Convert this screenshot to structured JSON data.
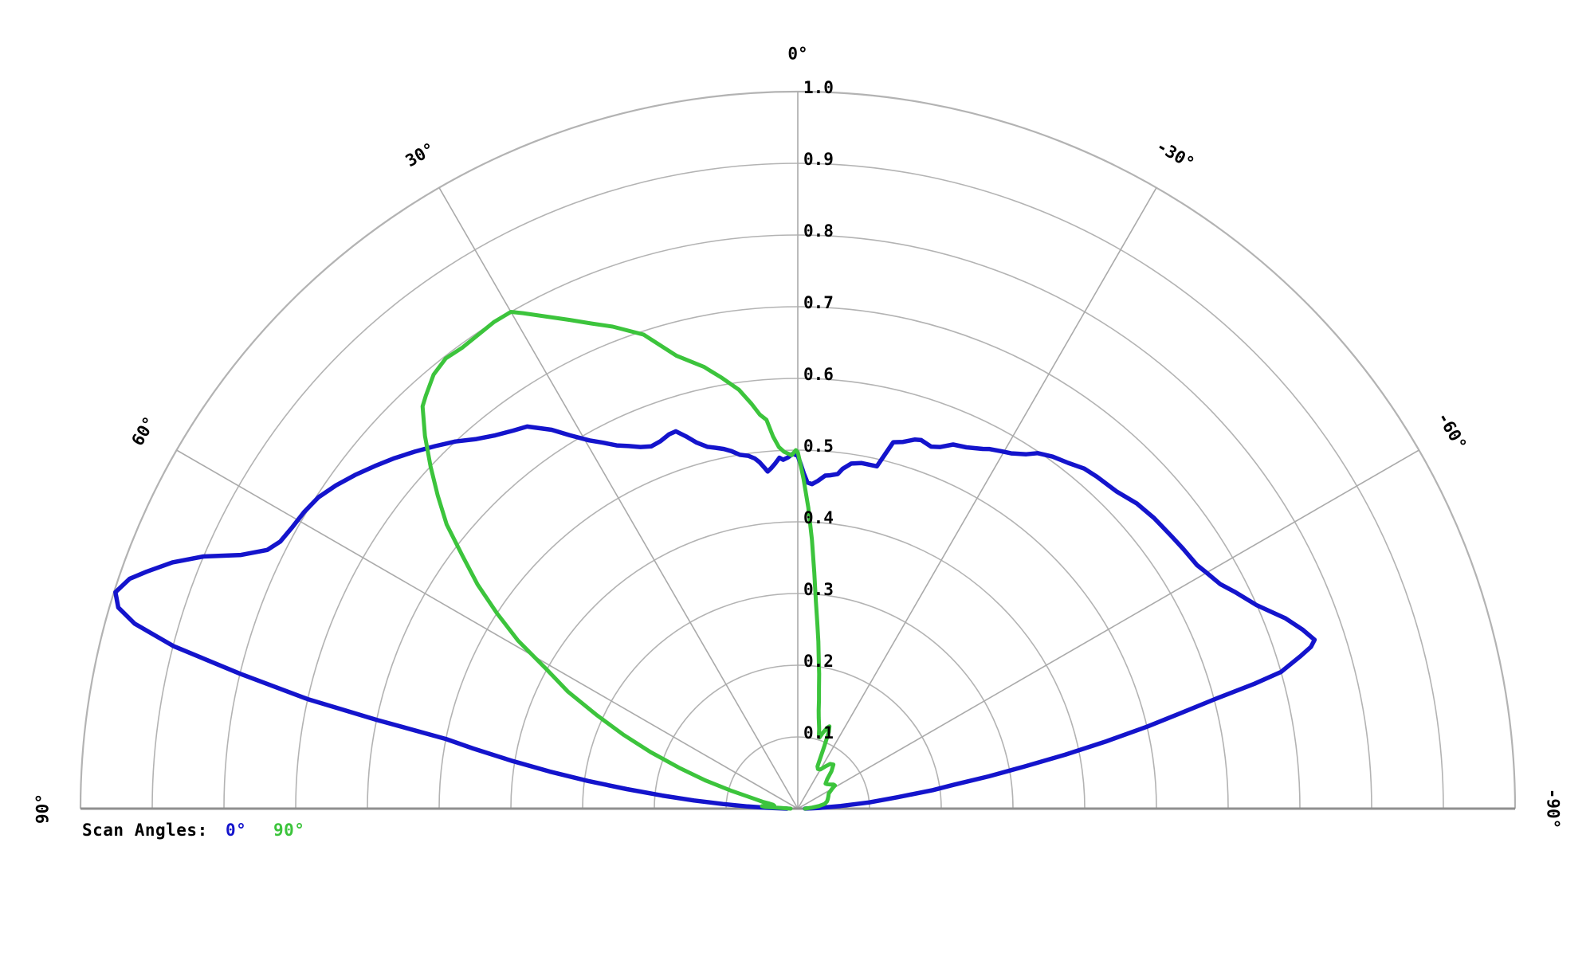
{
  "chart_data": {
    "type": "line",
    "subtype": "polar-half",
    "title": "",
    "angle_range_deg": [
      -90,
      90
    ],
    "r_range": [
      0,
      1.0
    ],
    "ring_step": 0.1,
    "radial_step_deg": 30,
    "grid_on": true,
    "colors": {
      "grid": "#b3b3b3",
      "radial": "#aaaaaa",
      "baseline": "#8f8f8f",
      "labels": "#000000",
      "background": "#ffffff"
    },
    "angular_ticks": [
      {
        "angle_deg": 0,
        "label": "0°"
      },
      {
        "angle_deg": 30,
        "label": "30°"
      },
      {
        "angle_deg": 60,
        "label": "60°"
      },
      {
        "angle_deg": 90,
        "label": "90°"
      },
      {
        "angle_deg": -30,
        "label": "-30°"
      },
      {
        "angle_deg": -60,
        "label": "-60°"
      },
      {
        "angle_deg": -90,
        "label": "-90°"
      }
    ],
    "radial_ticks": [
      {
        "r": 0.1,
        "label": "0.1"
      },
      {
        "r": 0.2,
        "label": "0.2"
      },
      {
        "r": 0.3,
        "label": "0.3"
      },
      {
        "r": 0.4,
        "label": "0.4"
      },
      {
        "r": 0.5,
        "label": "0.5"
      },
      {
        "r": 0.6,
        "label": "0.6"
      },
      {
        "r": 0.7,
        "label": "0.7"
      },
      {
        "r": 0.8,
        "label": "0.8"
      },
      {
        "r": 0.9,
        "label": "0.9"
      },
      {
        "r": 1.0,
        "label": "1.0"
      }
    ],
    "legend": {
      "title": "Scan Angles:",
      "entries": [
        {
          "label": "0°",
          "color": "#1414cc"
        },
        {
          "label": "90°",
          "color": "#3cc43c"
        }
      ]
    },
    "series": [
      {
        "name": "0°",
        "color": "#1414cc",
        "points": [
          [
            -90,
            0.01
          ],
          [
            -88,
            0.03
          ],
          [
            -86.5,
            0.06
          ],
          [
            -85,
            0.1
          ],
          [
            -83.5,
            0.14
          ],
          [
            -82.2,
            0.19
          ],
          [
            -81.3,
            0.22
          ],
          [
            -80.4,
            0.27
          ],
          [
            -79.5,
            0.32
          ],
          [
            -78.6,
            0.38
          ],
          [
            -77.7,
            0.44
          ],
          [
            -76.8,
            0.5
          ],
          [
            -76,
            0.55
          ],
          [
            -75.3,
            0.6
          ],
          [
            -74.7,
            0.66
          ],
          [
            -74.2,
            0.7
          ],
          [
            -73.1,
            0.733
          ],
          [
            -72.5,
            0.75
          ],
          [
            -71.9,
            0.758
          ],
          [
            -70.5,
            0.747
          ],
          [
            -68.7,
            0.73
          ],
          [
            -66.1,
            0.7
          ],
          [
            -63.6,
            0.68
          ],
          [
            -62,
            0.667
          ],
          [
            -60,
            0.658
          ],
          [
            -58.6,
            0.652
          ],
          [
            -56,
            0.648
          ],
          [
            -54,
            0.645
          ],
          [
            -50.8,
            0.641
          ],
          [
            -48,
            0.636
          ],
          [
            -45.1,
            0.627
          ],
          [
            -42,
            0.623
          ],
          [
            -40.1,
            0.62
          ],
          [
            -38,
            0.612
          ],
          [
            -35.9,
            0.606
          ],
          [
            -34,
            0.598
          ],
          [
            -32.8,
            0.588
          ],
          [
            -31,
            0.578
          ],
          [
            -29.8,
            0.574
          ],
          [
            -28,
            0.568
          ],
          [
            -27.2,
            0.564
          ],
          [
            -25,
            0.556
          ],
          [
            -23.1,
            0.552
          ],
          [
            -21.5,
            0.542
          ],
          [
            -20.2,
            0.538
          ],
          [
            -18.5,
            0.542
          ],
          [
            -17.6,
            0.54
          ],
          [
            -16,
            0.532
          ],
          [
            -14.6,
            0.528
          ],
          [
            -13,
            0.49
          ],
          [
            -10.4,
            0.49
          ],
          [
            -8.8,
            0.487
          ],
          [
            -7.5,
            0.478
          ],
          [
            -6.8,
            0.47
          ],
          [
            -5.5,
            0.467
          ],
          [
            -4.7,
            0.466
          ],
          [
            -3.5,
            0.458
          ],
          [
            -2.5,
            0.453
          ],
          [
            -1.7,
            0.455
          ],
          [
            -1,
            0.468
          ],
          [
            -0.5,
            0.48
          ],
          [
            0,
            0.492
          ],
          [
            0.8,
            0.495
          ],
          [
            1.6,
            0.49
          ],
          [
            2.4,
            0.487
          ],
          [
            3,
            0.49
          ],
          [
            3.8,
            0.482
          ],
          [
            4.5,
            0.476
          ],
          [
            5.1,
            0.472
          ],
          [
            5.6,
            0.478
          ],
          [
            6.3,
            0.486
          ],
          [
            7,
            0.492
          ],
          [
            8,
            0.497
          ],
          [
            9.3,
            0.5
          ],
          [
            10.5,
            0.507
          ],
          [
            11.6,
            0.512
          ],
          [
            12.8,
            0.516
          ],
          [
            14,
            0.52
          ],
          [
            15.5,
            0.53
          ],
          [
            16.7,
            0.542
          ],
          [
            17.9,
            0.553
          ],
          [
            19,
            0.552
          ],
          [
            20.5,
            0.547
          ],
          [
            22,
            0.545
          ],
          [
            23.5,
            0.55
          ],
          [
            25,
            0.558
          ],
          [
            26.5,
            0.566
          ],
          [
            28,
            0.578
          ],
          [
            29.5,
            0.59
          ],
          [
            31.4,
            0.61
          ],
          [
            33,
            0.63
          ],
          [
            35.3,
            0.653
          ],
          [
            37,
            0.66
          ],
          [
            39,
            0.67
          ],
          [
            41,
            0.683
          ],
          [
            43,
            0.7
          ],
          [
            45,
            0.715
          ],
          [
            47,
            0.73
          ],
          [
            49,
            0.745
          ],
          [
            51,
            0.759
          ],
          [
            53,
            0.773
          ],
          [
            55,
            0.786
          ],
          [
            57,
            0.797
          ],
          [
            59,
            0.803
          ],
          [
            61,
            0.807
          ],
          [
            62.7,
            0.812
          ],
          [
            64,
            0.823
          ],
          [
            65.5,
            0.853
          ],
          [
            67,
            0.9
          ],
          [
            68.5,
            0.937
          ],
          [
            70,
            0.966
          ],
          [
            71,
            0.985
          ],
          [
            72.4,
            0.998
          ],
          [
            73.5,
            0.988
          ],
          [
            74.4,
            0.96
          ],
          [
            75.4,
            0.9
          ],
          [
            76.4,
            0.8
          ],
          [
            77.4,
            0.7
          ],
          [
            78.1,
            0.6
          ],
          [
            78.8,
            0.5
          ],
          [
            79.5,
            0.46
          ],
          [
            80.5,
            0.405
          ],
          [
            81.5,
            0.35
          ],
          [
            82.5,
            0.295
          ],
          [
            83.5,
            0.24
          ],
          [
            84.5,
            0.19
          ],
          [
            85.5,
            0.145
          ],
          [
            86.5,
            0.105
          ],
          [
            87.5,
            0.07
          ],
          [
            88.5,
            0.045
          ],
          [
            90,
            0.015
          ]
        ]
      },
      {
        "name": "90°",
        "color": "#3cc43c",
        "points": [
          [
            -90,
            0.01
          ],
          [
            -86,
            0.02
          ],
          [
            -83,
            0.03
          ],
          [
            -80,
            0.038
          ],
          [
            -76,
            0.042
          ],
          [
            -72,
            0.044
          ],
          [
            -68,
            0.046
          ],
          [
            -64,
            0.048
          ],
          [
            -60,
            0.055
          ],
          [
            -58,
            0.061
          ],
          [
            -56,
            0.06
          ],
          [
            -53,
            0.056
          ],
          [
            -50,
            0.053
          ],
          [
            -48,
            0.052
          ],
          [
            -45,
            0.058
          ],
          [
            -42,
            0.07
          ],
          [
            -39,
            0.079
          ],
          [
            -36,
            0.077
          ],
          [
            -33,
            0.07
          ],
          [
            -30,
            0.063
          ],
          [
            -27,
            0.062
          ],
          [
            -25,
            0.065
          ],
          [
            -23,
            0.095
          ],
          [
            -22,
            0.115
          ],
          [
            -21,
            0.123
          ],
          [
            -20,
            0.12
          ],
          [
            -18,
            0.11
          ],
          [
            -17,
            0.104
          ],
          [
            -16,
            0.107
          ],
          [
            -15,
            0.115
          ],
          [
            -14,
            0.122
          ],
          [
            -13,
            0.13
          ],
          [
            -12,
            0.14
          ],
          [
            -11,
            0.155
          ],
          [
            -10,
            0.17
          ],
          [
            -9,
            0.19
          ],
          [
            -8,
            0.21
          ],
          [
            -7,
            0.235
          ],
          [
            -6,
            0.26
          ],
          [
            -5,
            0.29
          ],
          [
            -4,
            0.33
          ],
          [
            -3,
            0.376
          ],
          [
            -2,
            0.42
          ],
          [
            -1,
            0.46
          ],
          [
            -0.5,
            0.478
          ],
          [
            0,
            0.497
          ],
          [
            0.3,
            0.5
          ],
          [
            1,
            0.493
          ],
          [
            2.2,
            0.498
          ],
          [
            3,
            0.505
          ],
          [
            3.8,
            0.52
          ],
          [
            4.6,
            0.544
          ],
          [
            5.5,
            0.552
          ],
          [
            6.5,
            0.568
          ],
          [
            8,
            0.59
          ],
          [
            10,
            0.61
          ],
          [
            12,
            0.63
          ],
          [
            15,
            0.654
          ],
          [
            18,
            0.695
          ],
          [
            21,
            0.72
          ],
          [
            23,
            0.735
          ],
          [
            25,
            0.752
          ],
          [
            27,
            0.77
          ],
          [
            29,
            0.79
          ],
          [
            30,
            0.8
          ],
          [
            32,
            0.8
          ],
          [
            34,
            0.797
          ],
          [
            36,
            0.795
          ],
          [
            38,
            0.797
          ],
          [
            40,
            0.79
          ],
          [
            42,
            0.775
          ],
          [
            43,
            0.767
          ],
          [
            45,
            0.735
          ],
          [
            47,
            0.7
          ],
          [
            49,
            0.665
          ],
          [
            51,
            0.63
          ],
          [
            53,
            0.585
          ],
          [
            55,
            0.545
          ],
          [
            57,
            0.5
          ],
          [
            59,
            0.455
          ],
          [
            61,
            0.4
          ],
          [
            63,
            0.36
          ],
          [
            65,
            0.31
          ],
          [
            67,
            0.265
          ],
          [
            69,
            0.22
          ],
          [
            71,
            0.175
          ],
          [
            73,
            0.135
          ],
          [
            75,
            0.095
          ],
          [
            77,
            0.065
          ],
          [
            79,
            0.05
          ],
          [
            80,
            0.04
          ],
          [
            81,
            0.035
          ],
          [
            82,
            0.034
          ],
          [
            83,
            0.033
          ],
          [
            84,
            0.035
          ],
          [
            85,
            0.045
          ],
          [
            86,
            0.05
          ],
          [
            87,
            0.045
          ],
          [
            88,
            0.02
          ],
          [
            90,
            0.01
          ]
        ]
      }
    ]
  }
}
